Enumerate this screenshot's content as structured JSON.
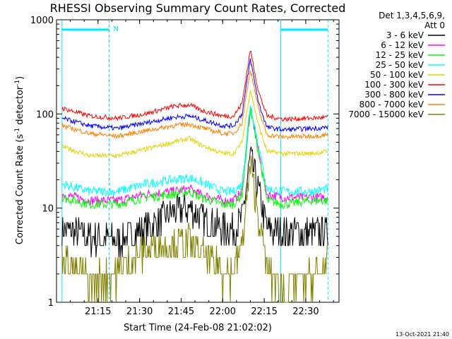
{
  "chart_data": {
    "type": "line",
    "title": "RHESSI Observing Summary Count Rates, Corrected",
    "xlabel": "Start Time (24-Feb-08 21:02:02)",
    "ylabel_main": "Corrected Count Rate (s",
    "ylabel_sup1": "-1",
    "ylabel_mid": " detector",
    "ylabel_sup2": "-1",
    "ylabel_end": ")",
    "yscale": "log",
    "ylim": [
      1,
      1000
    ],
    "xlim_minutes": [
      0,
      42
    ],
    "x_ticks": [
      {
        "minute": 13,
        "label": "21:15"
      },
      {
        "minute": 28,
        "label": "21:30"
      },
      {
        "minute": 43,
        "label": "21:45"
      },
      {
        "minute": 58,
        "label": "22:00"
      },
      {
        "minute": 73,
        "label": "22:15"
      },
      {
        "minute": 88,
        "label": "22:30"
      }
    ],
    "y_ticks": [
      {
        "value": 1,
        "label": "1"
      },
      {
        "value": 10,
        "label": "10"
      },
      {
        "value": 100,
        "label": "100"
      },
      {
        "value": 1000,
        "label": "1000"
      }
    ],
    "legend_header": [
      "Det 1,3,4,5,6,9,",
      "Att 0"
    ],
    "legend_position": "right",
    "marker_label": "N",
    "x_start_minute": 0,
    "x_end_minute": 100,
    "night_bars": [
      [
        0,
        17
      ],
      [
        79,
        96
      ]
    ],
    "saa_lines_minute": [
      0,
      17,
      79,
      96
    ],
    "series": [
      {
        "name": "3 - 6 keV",
        "color": "#000000",
        "points": [
          [
            0,
            6
          ],
          [
            10,
            5
          ],
          [
            20,
            4.5
          ],
          [
            30,
            6
          ],
          [
            40,
            9
          ],
          [
            46,
            10
          ],
          [
            50,
            8
          ],
          [
            58,
            6
          ],
          [
            62,
            6
          ],
          [
            65,
            7.5
          ],
          [
            68,
            35
          ],
          [
            71,
            15
          ],
          [
            74,
            6
          ],
          [
            80,
            5.5
          ],
          [
            90,
            5.5
          ],
          [
            96,
            5.5
          ]
        ]
      },
      {
        "name": "6 - 12 keV",
        "color": "#ff00ff",
        "points": [
          [
            0,
            14
          ],
          [
            10,
            12
          ],
          [
            20,
            12
          ],
          [
            30,
            14
          ],
          [
            40,
            15
          ],
          [
            46,
            16
          ],
          [
            50,
            14
          ],
          [
            58,
            12
          ],
          [
            62,
            12
          ],
          [
            65,
            15
          ],
          [
            68,
            115
          ],
          [
            71,
            40
          ],
          [
            74,
            14
          ],
          [
            80,
            13
          ],
          [
            90,
            13
          ],
          [
            96,
            13
          ]
        ]
      },
      {
        "name": "12 - 25 keV",
        "color": "#00ff00",
        "points": [
          [
            0,
            13
          ],
          [
            10,
            11
          ],
          [
            20,
            11
          ],
          [
            30,
            13
          ],
          [
            40,
            14
          ],
          [
            46,
            15
          ],
          [
            50,
            13
          ],
          [
            58,
            11
          ],
          [
            62,
            11
          ],
          [
            65,
            14
          ],
          [
            68,
            110
          ],
          [
            71,
            38
          ],
          [
            74,
            12
          ],
          [
            80,
            11
          ],
          [
            90,
            12
          ],
          [
            96,
            12
          ]
        ]
      },
      {
        "name": "25 - 50 keV",
        "color": "#00ffff",
        "points": [
          [
            0,
            18
          ],
          [
            10,
            15
          ],
          [
            20,
            15
          ],
          [
            30,
            18
          ],
          [
            40,
            20
          ],
          [
            46,
            21
          ],
          [
            50,
            19
          ],
          [
            58,
            15
          ],
          [
            62,
            15
          ],
          [
            65,
            18
          ],
          [
            68,
            130
          ],
          [
            71,
            45
          ],
          [
            74,
            16
          ],
          [
            80,
            15
          ],
          [
            90,
            15
          ],
          [
            96,
            16
          ]
        ]
      },
      {
        "name": "50 - 100 keV",
        "color": "#e6d200",
        "points": [
          [
            0,
            45
          ],
          [
            10,
            36
          ],
          [
            20,
            36
          ],
          [
            30,
            42
          ],
          [
            40,
            50
          ],
          [
            46,
            55
          ],
          [
            50,
            47
          ],
          [
            58,
            38
          ],
          [
            62,
            38
          ],
          [
            65,
            50
          ],
          [
            68,
            180
          ],
          [
            71,
            75
          ],
          [
            74,
            40
          ],
          [
            80,
            38
          ],
          [
            90,
            38
          ],
          [
            96,
            40
          ]
        ]
      },
      {
        "name": "100 - 300 keV",
        "color": "#ff0000",
        "points": [
          [
            0,
            115
          ],
          [
            10,
            95
          ],
          [
            20,
            90
          ],
          [
            30,
            100
          ],
          [
            40,
            120
          ],
          [
            46,
            125
          ],
          [
            50,
            110
          ],
          [
            58,
            95
          ],
          [
            62,
            95
          ],
          [
            65,
            130
          ],
          [
            68,
            480
          ],
          [
            71,
            170
          ],
          [
            74,
            95
          ],
          [
            80,
            88
          ],
          [
            90,
            90
          ],
          [
            96,
            92
          ]
        ]
      },
      {
        "name": "300 - 800 keV",
        "color": "#0000ff",
        "points": [
          [
            0,
            90
          ],
          [
            10,
            75
          ],
          [
            20,
            70
          ],
          [
            30,
            80
          ],
          [
            40,
            92
          ],
          [
            46,
            95
          ],
          [
            50,
            88
          ],
          [
            58,
            75
          ],
          [
            62,
            75
          ],
          [
            65,
            100
          ],
          [
            68,
            380
          ],
          [
            71,
            130
          ],
          [
            74,
            72
          ],
          [
            80,
            68
          ],
          [
            90,
            70
          ],
          [
            96,
            72
          ]
        ]
      },
      {
        "name": "800 - 7000 keV",
        "color": "#ff8000",
        "points": [
          [
            0,
            75
          ],
          [
            10,
            62
          ],
          [
            20,
            58
          ],
          [
            30,
            66
          ],
          [
            40,
            75
          ],
          [
            46,
            78
          ],
          [
            50,
            72
          ],
          [
            58,
            62
          ],
          [
            62,
            62
          ],
          [
            65,
            80
          ],
          [
            68,
            300
          ],
          [
            71,
            110
          ],
          [
            74,
            60
          ],
          [
            80,
            57
          ],
          [
            90,
            58
          ],
          [
            96,
            60
          ]
        ]
      },
      {
        "name": "7000 - 15000 keV",
        "color": "#808000",
        "points": [
          [
            0,
            3
          ],
          [
            10,
            1.6
          ],
          [
            20,
            2.2
          ],
          [
            30,
            3.5
          ],
          [
            40,
            4.2
          ],
          [
            46,
            4.4
          ],
          [
            50,
            3.3
          ],
          [
            58,
            2.2
          ],
          [
            62,
            2.2
          ],
          [
            65,
            4
          ],
          [
            68,
            28
          ],
          [
            71,
            8
          ],
          [
            74,
            2.2
          ],
          [
            80,
            1.5
          ],
          [
            90,
            1.8
          ],
          [
            96,
            2.5
          ]
        ]
      }
    ]
  },
  "footer": {
    "timestamp": "13-Oct-2021 21:40"
  }
}
